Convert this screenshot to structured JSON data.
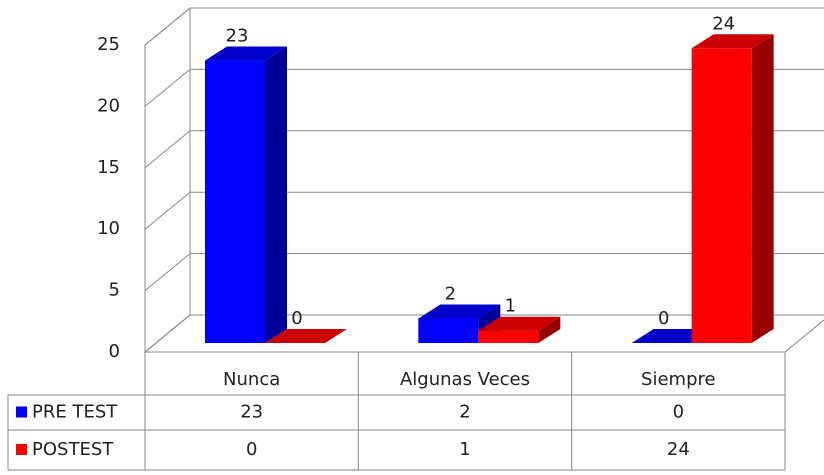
{
  "chart_data": {
    "type": "bar3d",
    "categories": [
      "Nunca",
      "Algunas Veces",
      "Siempre"
    ],
    "series": [
      {
        "name": "PRE TEST",
        "color": "#0000ff",
        "values": [
          23,
          2,
          0
        ]
      },
      {
        "name": "POSTEST",
        "color": "#ff0000",
        "values": [
          0,
          1,
          24
        ]
      }
    ],
    "ylim": [
      0,
      25
    ],
    "yticks": [
      0,
      5,
      10,
      15,
      20,
      25
    ],
    "grid": true,
    "data_table": true
  }
}
